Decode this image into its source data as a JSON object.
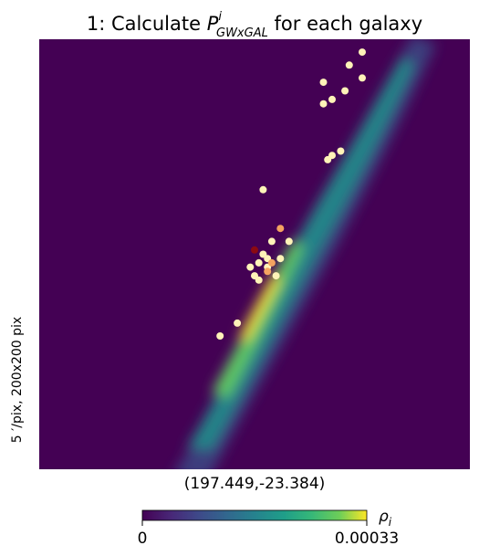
{
  "title": {
    "prefix": "1: Calculate ",
    "symbol": "P",
    "superscript": "i",
    "subscript": "GWxGAL",
    "suffix": " for each galaxy"
  },
  "xlabel": "(197.449,-23.384)",
  "ylabel": "5 ′/pix,   200x200 pix",
  "colorbar": {
    "symbol": "ρ",
    "subscript": "i",
    "min_label": "0",
    "max_label": "0.00033",
    "colormap": "viridis",
    "range": [
      0,
      0.00033
    ]
  },
  "colors": {
    "background": "#440154",
    "galaxy_low": "#fff3b8",
    "galaxy_mid": "#f4a361",
    "galaxy_high": "#8b0a12"
  },
  "chart_data": {
    "type": "heatmap",
    "description_of_axes": "sky map, 200x200 pixels, 5 arcmin per pixel, centered at (197.449,-23.384)",
    "grid": false,
    "probability_band": {
      "shape": "elongated diagonal band from lower-left to upper-right",
      "peak_value": 0.00033,
      "ridge": [
        [
          0.27,
          0.05
        ],
        [
          0.42,
          0.3
        ],
        [
          0.55,
          0.58
        ],
        [
          0.7,
          0.82
        ],
        [
          0.82,
          0.97
        ]
      ]
    },
    "galaxies": [
      {
        "x": 0.75,
        "y": 0.97,
        "p": 0.02
      },
      {
        "x": 0.72,
        "y": 0.94,
        "p": 0.02
      },
      {
        "x": 0.75,
        "y": 0.91,
        "p": 0.02
      },
      {
        "x": 0.66,
        "y": 0.9,
        "p": 0.02
      },
      {
        "x": 0.71,
        "y": 0.88,
        "p": 0.03
      },
      {
        "x": 0.68,
        "y": 0.86,
        "p": 0.1
      },
      {
        "x": 0.66,
        "y": 0.85,
        "p": 0.02
      },
      {
        "x": 0.7,
        "y": 0.74,
        "p": 0.02
      },
      {
        "x": 0.68,
        "y": 0.73,
        "p": 0.02
      },
      {
        "x": 0.67,
        "y": 0.72,
        "p": 0.02
      },
      {
        "x": 0.52,
        "y": 0.65,
        "p": 0.02
      },
      {
        "x": 0.56,
        "y": 0.56,
        "p": 0.4
      },
      {
        "x": 0.58,
        "y": 0.53,
        "p": 0.05
      },
      {
        "x": 0.54,
        "y": 0.53,
        "p": 0.05
      },
      {
        "x": 0.5,
        "y": 0.51,
        "p": 1.0
      },
      {
        "x": 0.52,
        "y": 0.5,
        "p": 0.05
      },
      {
        "x": 0.53,
        "y": 0.49,
        "p": 0.08
      },
      {
        "x": 0.56,
        "y": 0.49,
        "p": 0.05
      },
      {
        "x": 0.51,
        "y": 0.48,
        "p": 0.06
      },
      {
        "x": 0.54,
        "y": 0.48,
        "p": 0.4
      },
      {
        "x": 0.49,
        "y": 0.47,
        "p": 0.05
      },
      {
        "x": 0.53,
        "y": 0.47,
        "p": 0.1
      },
      {
        "x": 0.53,
        "y": 0.46,
        "p": 0.6
      },
      {
        "x": 0.55,
        "y": 0.45,
        "p": 0.05
      },
      {
        "x": 0.5,
        "y": 0.45,
        "p": 0.05
      },
      {
        "x": 0.51,
        "y": 0.44,
        "p": 0.05
      },
      {
        "x": 0.46,
        "y": 0.34,
        "p": 0.03
      },
      {
        "x": 0.42,
        "y": 0.31,
        "p": 0.03
      }
    ]
  }
}
